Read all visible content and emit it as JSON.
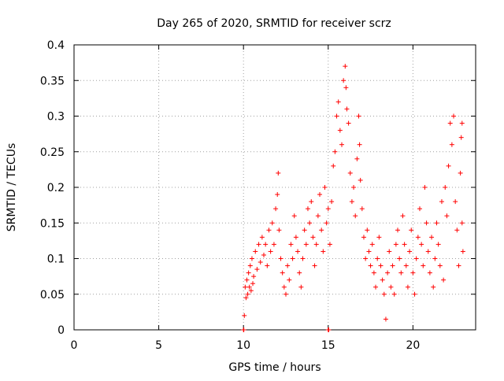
{
  "chart_data": {
    "type": "scatter",
    "title": "Day 265 of 2020, SRMTID for receiver scrz",
    "xlabel": "GPS time / hours",
    "ylabel": "SRMTID / TECUs",
    "xlim": [
      0,
      23.7
    ],
    "ylim": [
      0,
      0.4
    ],
    "xticks": [
      0,
      5,
      10,
      15,
      20
    ],
    "yticks": [
      0,
      0.05,
      0.1,
      0.15,
      0.2,
      0.25,
      0.3,
      0.35,
      0.4
    ],
    "ytick_labels": [
      "0",
      "0.05",
      "0.1",
      "0.15",
      "0.2",
      "0.25",
      "0.3",
      "0.35",
      "0.4"
    ],
    "grid": true,
    "marker": "+",
    "marker_color": "#ff0000",
    "series": [
      {
        "values": [
          [
            10.0,
            0.0
          ],
          [
            10.02,
            0.0
          ],
          [
            15.0,
            0.0
          ],
          [
            15.03,
            0.0
          ],
          [
            10.05,
            0.02
          ],
          [
            10.1,
            0.06
          ],
          [
            10.15,
            0.045
          ],
          [
            10.2,
            0.07
          ],
          [
            10.25,
            0.05
          ],
          [
            10.3,
            0.08
          ],
          [
            10.35,
            0.06
          ],
          [
            10.4,
            0.09
          ],
          [
            10.45,
            0.055
          ],
          [
            10.5,
            0.1
          ],
          [
            10.55,
            0.065
          ],
          [
            10.6,
            0.075
          ],
          [
            10.7,
            0.11
          ],
          [
            10.8,
            0.085
          ],
          [
            10.9,
            0.12
          ],
          [
            11.0,
            0.095
          ],
          [
            11.1,
            0.13
          ],
          [
            11.2,
            0.105
          ],
          [
            11.3,
            0.12
          ],
          [
            11.4,
            0.09
          ],
          [
            11.5,
            0.14
          ],
          [
            11.6,
            0.11
          ],
          [
            11.7,
            0.15
          ],
          [
            11.8,
            0.12
          ],
          [
            11.9,
            0.17
          ],
          [
            12.0,
            0.19
          ],
          [
            12.05,
            0.22
          ],
          [
            12.1,
            0.14
          ],
          [
            12.2,
            0.1
          ],
          [
            12.3,
            0.08
          ],
          [
            12.4,
            0.06
          ],
          [
            12.5,
            0.05
          ],
          [
            12.6,
            0.09
          ],
          [
            12.7,
            0.07
          ],
          [
            12.8,
            0.12
          ],
          [
            12.9,
            0.1
          ],
          [
            13.0,
            0.16
          ],
          [
            13.1,
            0.13
          ],
          [
            13.2,
            0.11
          ],
          [
            13.3,
            0.08
          ],
          [
            13.4,
            0.06
          ],
          [
            13.5,
            0.1
          ],
          [
            13.6,
            0.14
          ],
          [
            13.7,
            0.12
          ],
          [
            13.8,
            0.17
          ],
          [
            13.9,
            0.15
          ],
          [
            14.0,
            0.18
          ],
          [
            14.1,
            0.13
          ],
          [
            14.2,
            0.09
          ],
          [
            14.3,
            0.12
          ],
          [
            14.4,
            0.16
          ],
          [
            14.5,
            0.19
          ],
          [
            14.6,
            0.14
          ],
          [
            14.7,
            0.11
          ],
          [
            14.8,
            0.2
          ],
          [
            14.9,
            0.15
          ],
          [
            15.0,
            0.17
          ],
          [
            15.1,
            0.12
          ],
          [
            15.2,
            0.18
          ],
          [
            15.3,
            0.23
          ],
          [
            15.4,
            0.25
          ],
          [
            15.5,
            0.3
          ],
          [
            15.6,
            0.32
          ],
          [
            15.7,
            0.28
          ],
          [
            15.8,
            0.26
          ],
          [
            15.9,
            0.35
          ],
          [
            16.0,
            0.37
          ],
          [
            16.05,
            0.34
          ],
          [
            16.1,
            0.31
          ],
          [
            16.2,
            0.29
          ],
          [
            16.3,
            0.22
          ],
          [
            16.4,
            0.18
          ],
          [
            16.5,
            0.2
          ],
          [
            16.6,
            0.16
          ],
          [
            16.7,
            0.24
          ],
          [
            16.8,
            0.3
          ],
          [
            16.85,
            0.26
          ],
          [
            16.9,
            0.21
          ],
          [
            17.0,
            0.17
          ],
          [
            17.1,
            0.13
          ],
          [
            17.2,
            0.1
          ],
          [
            17.3,
            0.14
          ],
          [
            17.4,
            0.11
          ],
          [
            17.5,
            0.09
          ],
          [
            17.6,
            0.12
          ],
          [
            17.7,
            0.08
          ],
          [
            17.8,
            0.06
          ],
          [
            17.9,
            0.1
          ],
          [
            18.0,
            0.13
          ],
          [
            18.1,
            0.09
          ],
          [
            18.2,
            0.07
          ],
          [
            18.3,
            0.05
          ],
          [
            18.4,
            0.015
          ],
          [
            18.5,
            0.08
          ],
          [
            18.6,
            0.11
          ],
          [
            18.7,
            0.06
          ],
          [
            18.8,
            0.09
          ],
          [
            18.9,
            0.05
          ],
          [
            19.0,
            0.12
          ],
          [
            19.1,
            0.14
          ],
          [
            19.2,
            0.1
          ],
          [
            19.3,
            0.08
          ],
          [
            19.4,
            0.16
          ],
          [
            19.5,
            0.12
          ],
          [
            19.6,
            0.09
          ],
          [
            19.7,
            0.06
          ],
          [
            19.8,
            0.11
          ],
          [
            19.9,
            0.14
          ],
          [
            20.0,
            0.08
          ],
          [
            20.1,
            0.05
          ],
          [
            20.2,
            0.1
          ],
          [
            20.3,
            0.13
          ],
          [
            20.4,
            0.17
          ],
          [
            20.5,
            0.12
          ],
          [
            20.6,
            0.09
          ],
          [
            20.7,
            0.2
          ],
          [
            20.8,
            0.15
          ],
          [
            20.9,
            0.11
          ],
          [
            21.0,
            0.08
          ],
          [
            21.1,
            0.13
          ],
          [
            21.2,
            0.06
          ],
          [
            21.3,
            0.1
          ],
          [
            21.4,
            0.15
          ],
          [
            21.5,
            0.12
          ],
          [
            21.6,
            0.09
          ],
          [
            21.7,
            0.18
          ],
          [
            21.8,
            0.07
          ],
          [
            21.9,
            0.2
          ],
          [
            22.0,
            0.16
          ],
          [
            22.1,
            0.23
          ],
          [
            22.2,
            0.29
          ],
          [
            22.3,
            0.26
          ],
          [
            22.4,
            0.3
          ],
          [
            22.5,
            0.18
          ],
          [
            22.6,
            0.14
          ],
          [
            22.7,
            0.09
          ],
          [
            22.8,
            0.22
          ],
          [
            22.85,
            0.27
          ],
          [
            22.9,
            0.15
          ],
          [
            22.95,
            0.11
          ],
          [
            22.9,
            0.29
          ]
        ]
      }
    ]
  }
}
